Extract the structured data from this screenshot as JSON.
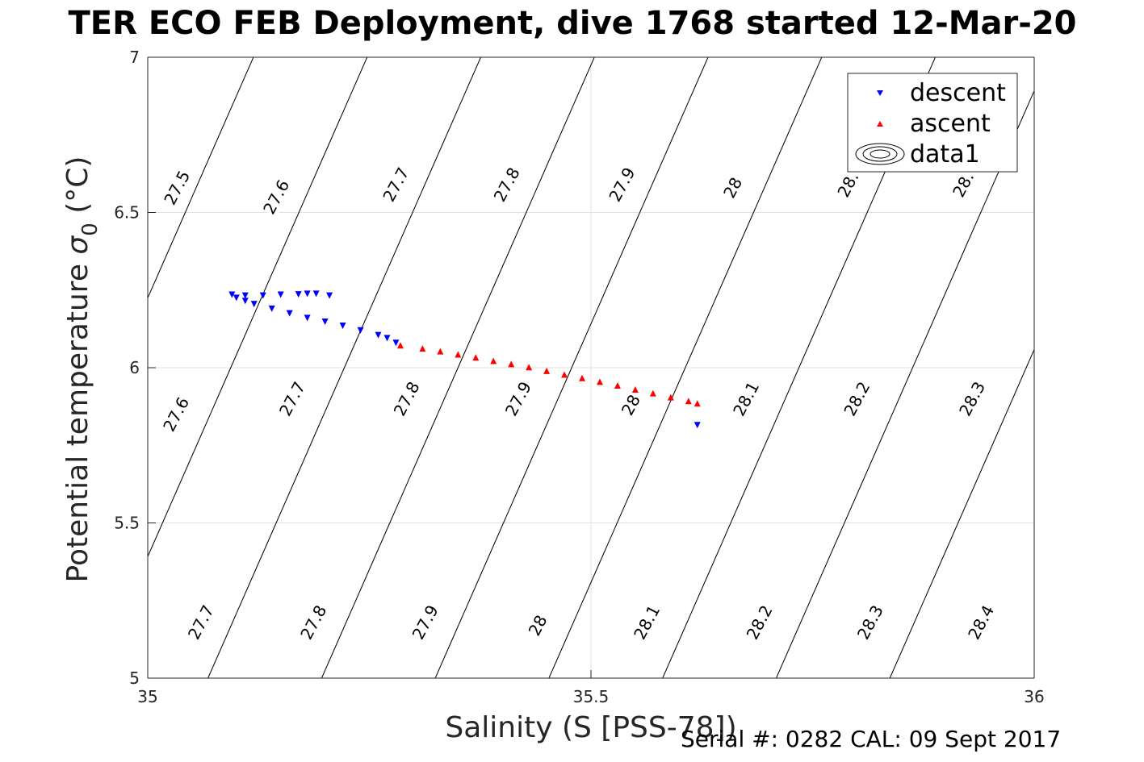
{
  "chart_data": {
    "type": "scatter",
    "title": "TER ECO FEB Deployment, dive 1768 started 12-Mar-20",
    "xlabel": "Salinity (S [PSS-78])",
    "ylabel_main": "Potential temperature ",
    "ylabel_sigma": "σ",
    "ylabel_sub": "0",
    "ylabel_unit": " (°C)",
    "xlim": [
      35,
      36
    ],
    "ylim": [
      5,
      7
    ],
    "x_ticks": [
      35,
      35.5,
      36
    ],
    "x_tick_labels": [
      "35",
      "35.5",
      "36"
    ],
    "y_ticks": [
      5,
      5.5,
      6,
      6.5,
      7
    ],
    "y_tick_labels": [
      "5",
      "5.5",
      "6",
      "6.5",
      "7"
    ],
    "grid": true,
    "legend_position": "top-right",
    "series": [
      {
        "name": "descent",
        "marker": "triangle-down",
        "color": "#0000ff",
        "points": [
          [
            35.095,
            6.235
          ],
          [
            35.11,
            6.232
          ],
          [
            35.13,
            6.232
          ],
          [
            35.15,
            6.235
          ],
          [
            35.17,
            6.236
          ],
          [
            35.18,
            6.238
          ],
          [
            35.19,
            6.238
          ],
          [
            35.1,
            6.225
          ],
          [
            35.11,
            6.215
          ],
          [
            35.12,
            6.205
          ],
          [
            35.14,
            6.19
          ],
          [
            35.16,
            6.175
          ],
          [
            35.18,
            6.16
          ],
          [
            35.2,
            6.148
          ],
          [
            35.22,
            6.135
          ],
          [
            35.24,
            6.12
          ],
          [
            35.26,
            6.105
          ],
          [
            35.27,
            6.095
          ],
          [
            35.28,
            6.08
          ],
          [
            35.205,
            6.232
          ],
          [
            35.62,
            5.815
          ]
        ]
      },
      {
        "name": "ascent",
        "marker": "triangle-up",
        "color": "#ff0000",
        "points": [
          [
            35.285,
            6.072
          ],
          [
            35.31,
            6.062
          ],
          [
            35.33,
            6.053
          ],
          [
            35.35,
            6.043
          ],
          [
            35.37,
            6.033
          ],
          [
            35.39,
            6.022
          ],
          [
            35.41,
            6.012
          ],
          [
            35.43,
            6.002
          ],
          [
            35.45,
            5.99
          ],
          [
            35.47,
            5.978
          ],
          [
            35.49,
            5.967
          ],
          [
            35.51,
            5.955
          ],
          [
            35.53,
            5.943
          ],
          [
            35.55,
            5.93
          ],
          [
            35.57,
            5.918
          ],
          [
            35.59,
            5.905
          ],
          [
            35.61,
            5.893
          ],
          [
            35.62,
            5.885
          ]
        ]
      },
      {
        "name": "data1",
        "marker": "contour",
        "color": "#000000",
        "levels": [
          27.5,
          27.6,
          27.7,
          27.8,
          27.9,
          28,
          28.1,
          28.2,
          28.3,
          28.4
        ]
      }
    ],
    "contour_labels": [
      {
        "text": "27.5",
        "x": 35.033,
        "y": 6.58
      },
      {
        "text": "27.6",
        "x": 35.145,
        "y": 6.55
      },
      {
        "text": "27.7",
        "x": 35.28,
        "y": 6.59
      },
      {
        "text": "27.8",
        "x": 35.405,
        "y": 6.59
      },
      {
        "text": "27.9",
        "x": 35.535,
        "y": 6.59
      },
      {
        "text": "28",
        "x": 35.66,
        "y": 6.58
      },
      {
        "text": "28.",
        "x": 35.79,
        "y": 6.59
      },
      {
        "text": "28.",
        "x": 35.92,
        "y": 6.59
      },
      {
        "text": "27.6",
        "x": 35.032,
        "y": 5.85
      },
      {
        "text": "27.7",
        "x": 35.163,
        "y": 5.9
      },
      {
        "text": "27.8",
        "x": 35.292,
        "y": 5.9
      },
      {
        "text": "27.9",
        "x": 35.418,
        "y": 5.9
      },
      {
        "text": "28",
        "x": 35.545,
        "y": 5.88
      },
      {
        "text": "28.1",
        "x": 35.675,
        "y": 5.9
      },
      {
        "text": "28.2",
        "x": 35.8,
        "y": 5.9
      },
      {
        "text": "28.3",
        "x": 35.93,
        "y": 5.9
      },
      {
        "text": "27.7",
        "x": 35.06,
        "y": 5.18
      },
      {
        "text": "27.8",
        "x": 35.187,
        "y": 5.18
      },
      {
        "text": "27.9",
        "x": 35.313,
        "y": 5.18
      },
      {
        "text": "28",
        "x": 35.44,
        "y": 5.17
      },
      {
        "text": "28.1",
        "x": 35.563,
        "y": 5.18
      },
      {
        "text": "28.2",
        "x": 35.69,
        "y": 5.18
      },
      {
        "text": "28.3",
        "x": 35.815,
        "y": 5.18
      },
      {
        "text": "28.4",
        "x": 35.94,
        "y": 5.18
      }
    ]
  },
  "footer": {
    "text": "Serial #: 0282  CAL: 09 Sept 2017"
  },
  "colors": {
    "descent": "#0000ff",
    "ascent": "#ff0000",
    "contour": "#000000",
    "grid": "#e0e0e0",
    "axis": "#262626"
  }
}
